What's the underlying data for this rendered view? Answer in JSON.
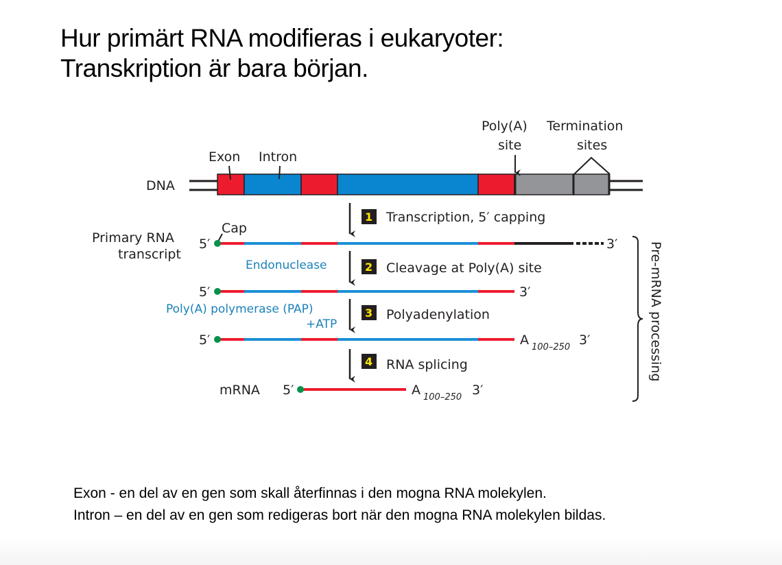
{
  "slide": {
    "title_line1": "Hur primärt RNA modifieras i eukaryoter:",
    "title_line2": "Transkription är bara början.",
    "definition_exon": "Exon -  en del av en gen som skall återfinnas i den mogna RNA molekylen.",
    "definition_intron": "Intron – en del av en gen som redigeras bort när den mogna RNA molekylen bildas."
  },
  "diagram": {
    "labels": {
      "dna": "DNA",
      "exon": "Exon",
      "intron": "Intron",
      "polya_site_1": "Poly(A)",
      "polya_site_2": "site",
      "termination_1": "Termination",
      "termination_2": "sites",
      "primary_rna_1": "Primary RNA",
      "primary_rna_2": "transcript",
      "cap": "Cap",
      "five_prime": "5′",
      "three_prime": "3′",
      "endonuclease": "Endonuclease",
      "pap_1": "Poly(A) polymerase (PAP)",
      "pap_2": "+ATP",
      "poly_a": "A",
      "poly_a_range": "100–250",
      "mrna": "mRNA",
      "pre_mrna_processing": "Pre-mRNA processing"
    },
    "steps": [
      {
        "number": "1",
        "label": "Transcription, 5′ capping"
      },
      {
        "number": "2",
        "label": "Cleavage at Poly(A) site"
      },
      {
        "number": "3",
        "label": "Polyadenylation"
      },
      {
        "number": "4",
        "label": "RNA splicing"
      }
    ],
    "colors": {
      "exon": "#ec1c2e",
      "intron": "#0a85cf",
      "downstream": "#939598",
      "cap": "#00934a",
      "rna_intron": "#1c8fd6"
    }
  }
}
